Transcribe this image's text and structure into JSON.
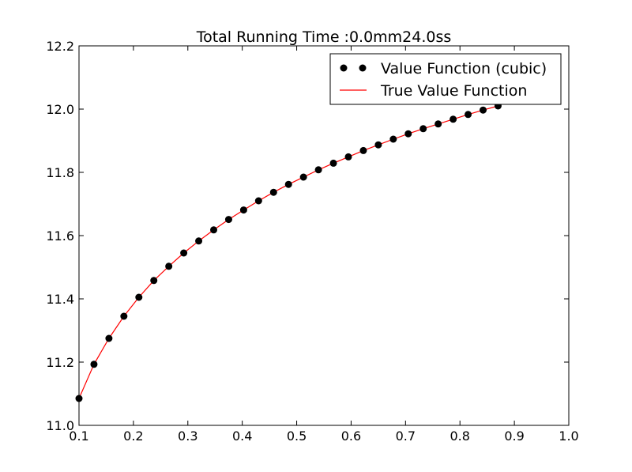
{
  "chart_data": {
    "type": "line",
    "title": "Total Running Time :0.0mm24.0ss",
    "xlabel": "",
    "ylabel": "",
    "xlim": [
      0.1,
      1.0
    ],
    "ylim": [
      11.0,
      12.2
    ],
    "x_ticks": [
      "0.1",
      "0.2",
      "0.3",
      "0.4",
      "0.5",
      "0.6",
      "0.7",
      "0.8",
      "0.9",
      "1.0"
    ],
    "y_ticks": [
      "11.0",
      "11.2",
      "11.4",
      "11.6",
      "11.8",
      "12.0",
      "12.2"
    ],
    "grid": false,
    "legend_position": "top-right",
    "series": [
      {
        "name": "Value Function (cubic)",
        "style": "markers",
        "color": "#000000",
        "x": [
          0.1,
          0.1275,
          0.155,
          0.1825,
          0.21,
          0.2375,
          0.265,
          0.2925,
          0.32,
          0.3475,
          0.375,
          0.4025,
          0.43,
          0.4575,
          0.485,
          0.5125,
          0.54,
          0.5675,
          0.595,
          0.6225,
          0.65,
          0.6775,
          0.705,
          0.7325,
          0.76,
          0.7875,
          0.815,
          0.8425,
          0.87
        ],
        "values": [
          11.085,
          11.193,
          11.275,
          11.345,
          11.405,
          11.458,
          11.503,
          11.545,
          11.583,
          11.618,
          11.651,
          11.681,
          11.71,
          11.737,
          11.762,
          11.785,
          11.808,
          11.829,
          11.849,
          11.869,
          11.887,
          11.905,
          11.922,
          11.938,
          11.953,
          11.968,
          11.983,
          11.997,
          12.01
        ]
      },
      {
        "name": "True Value Function",
        "style": "line",
        "color": "#ff0000",
        "x": [
          0.1,
          0.1275,
          0.155,
          0.1825,
          0.21,
          0.2375,
          0.265,
          0.2925,
          0.32,
          0.3475,
          0.375,
          0.4025,
          0.43,
          0.4575,
          0.485,
          0.5125,
          0.54,
          0.5675,
          0.595,
          0.6225,
          0.65,
          0.6775,
          0.705,
          0.7325,
          0.76,
          0.7875,
          0.815,
          0.8425,
          0.87
        ],
        "values": [
          11.085,
          11.193,
          11.275,
          11.345,
          11.405,
          11.458,
          11.503,
          11.545,
          11.583,
          11.618,
          11.651,
          11.681,
          11.71,
          11.737,
          11.762,
          11.785,
          11.808,
          11.829,
          11.849,
          11.869,
          11.887,
          11.905,
          11.922,
          11.938,
          11.953,
          11.968,
          11.983,
          11.997,
          12.01
        ]
      }
    ]
  }
}
